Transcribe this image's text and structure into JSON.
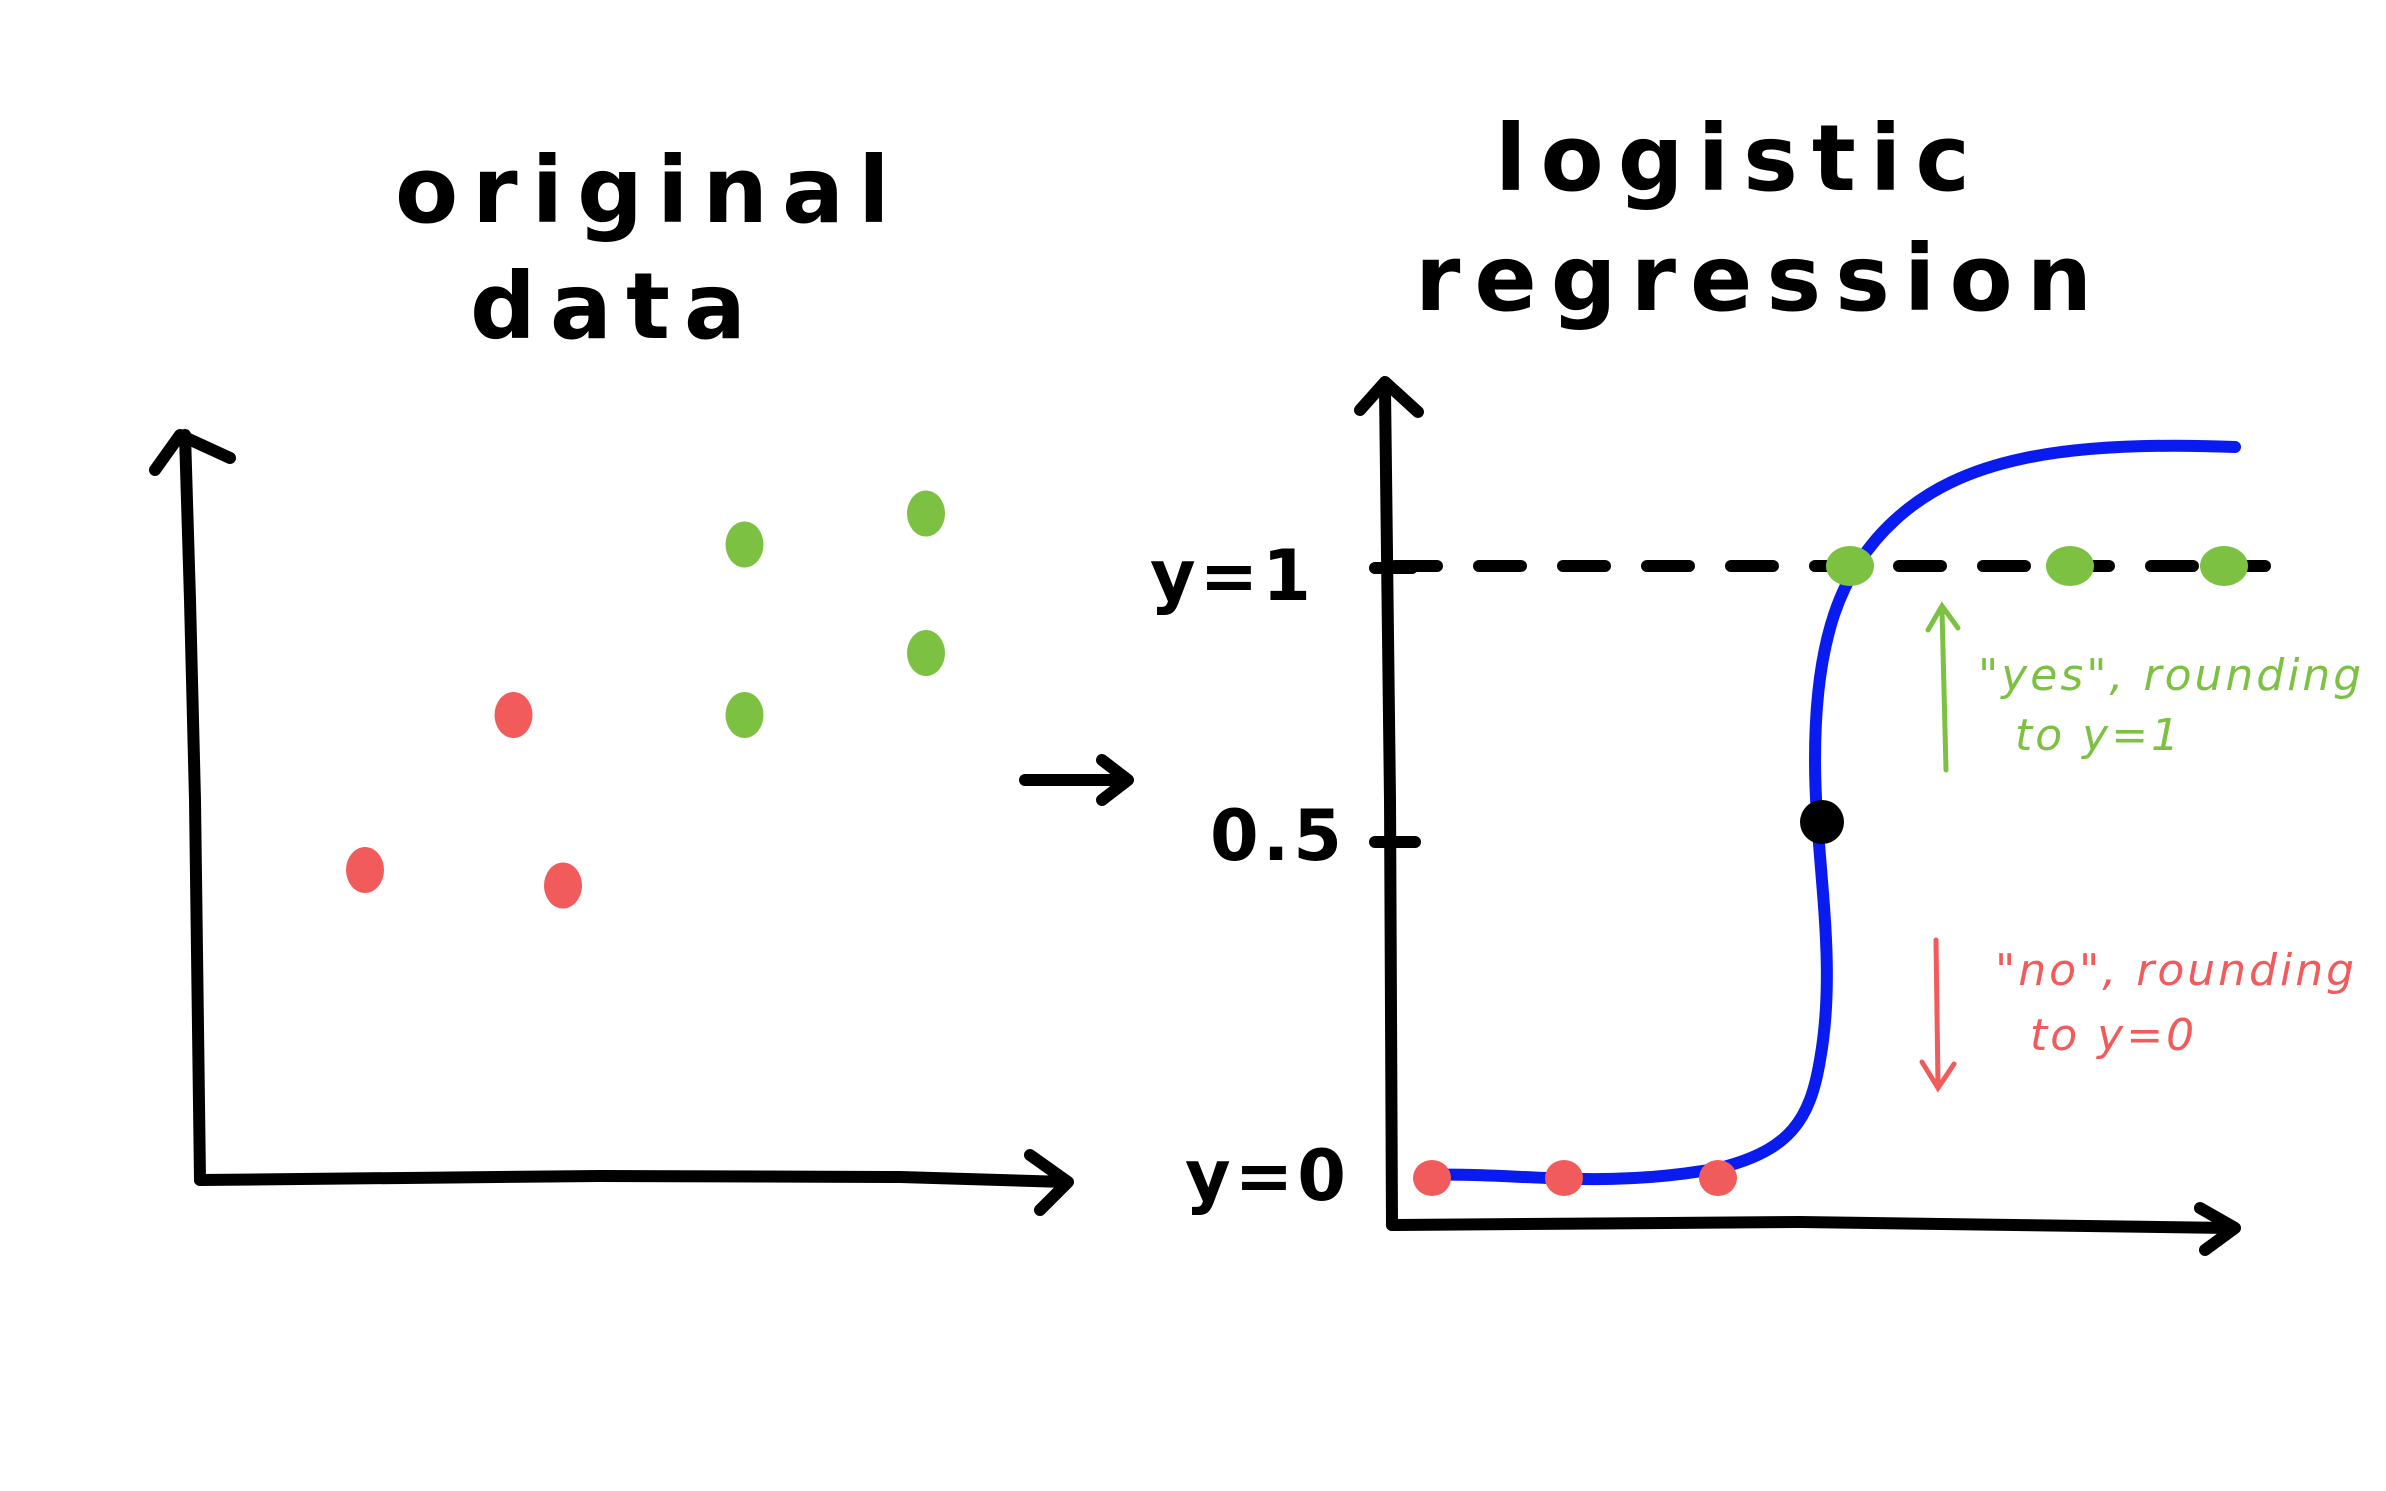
{
  "left_panel": {
    "title_line1": "original",
    "title_line2": "data",
    "points": [
      {
        "label": "no",
        "x": 1.0,
        "y": 2.0
      },
      {
        "label": "no",
        "x": 2.2,
        "y": 1.9
      },
      {
        "label": "no",
        "x": 1.9,
        "y": 3.0
      },
      {
        "label": "yes",
        "x": 3.3,
        "y": 3.0
      },
      {
        "label": "yes",
        "x": 3.3,
        "y": 4.1
      },
      {
        "label": "yes",
        "x": 4.4,
        "y": 4.3
      },
      {
        "label": "yes",
        "x": 4.4,
        "y": 3.4
      }
    ]
  },
  "transition_arrow": "→",
  "right_panel": {
    "title_line1": "logistic",
    "title_line2": "regression",
    "y_ticks": [
      "y=1",
      "0.5",
      "y=0"
    ],
    "tick_values": [
      1,
      0.5,
      0
    ],
    "points": [
      {
        "label": "no",
        "x": 1.0,
        "y": 0
      },
      {
        "label": "no",
        "x": 1.6,
        "y": 0
      },
      {
        "label": "no",
        "x": 2.3,
        "y": 0
      },
      {
        "label": "yes",
        "x": 2.9,
        "y": 1
      },
      {
        "label": "yes",
        "x": 3.9,
        "y": 1
      },
      {
        "label": "yes",
        "x": 4.6,
        "y": 1
      },
      {
        "label": "yes",
        "x": 5.7,
        "y": 1
      }
    ],
    "threshold_point": {
      "y": 0.5
    },
    "yes_note_line1": "\"yes\", rounding",
    "yes_note_line2": "to y=1",
    "no_note_line1": "\"no\", rounding",
    "no_note_line2": "to y=0"
  },
  "colors": {
    "yes": "#7cc142",
    "no": "#f25b5b",
    "curve": "#0a1bf0",
    "ink": "#000000"
  }
}
